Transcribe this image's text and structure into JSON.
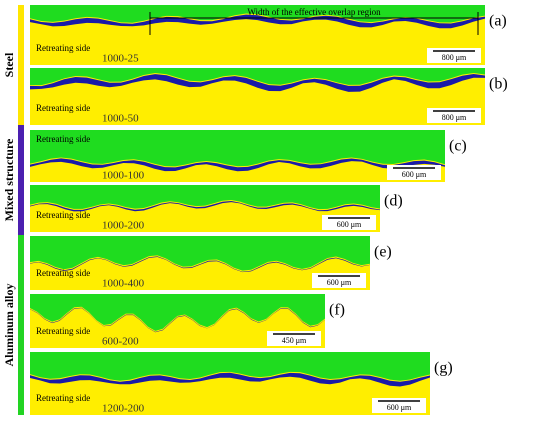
{
  "side_labels": [
    "Steel",
    "Mixed structure",
    "Aluminum alloy"
  ],
  "annotation": "Width of the effective overlap region",
  "panels": [
    {
      "label": "(a)",
      "side": "Retreating side",
      "condition": "1000-25",
      "scale": "800 μm"
    },
    {
      "label": "(b)",
      "side": "Retreating side",
      "condition": "1000-50",
      "scale": "800 μm"
    },
    {
      "label": "(c)",
      "side": "Retreating side",
      "condition": "1000-100",
      "scale": "600 μm"
    },
    {
      "label": "(d)",
      "side": "Retreating side",
      "condition": "1000-200",
      "scale": "600 μm"
    },
    {
      "label": "(e)",
      "side": "Retreating side",
      "condition": "1000-400",
      "scale": "600 μm"
    },
    {
      "label": "(f)",
      "side": "Retreating side",
      "condition": "600-200",
      "scale": "450 μm"
    },
    {
      "label": "(g)",
      "side": "Retreating side",
      "condition": "1200-200",
      "scale": "600 μm"
    }
  ]
}
